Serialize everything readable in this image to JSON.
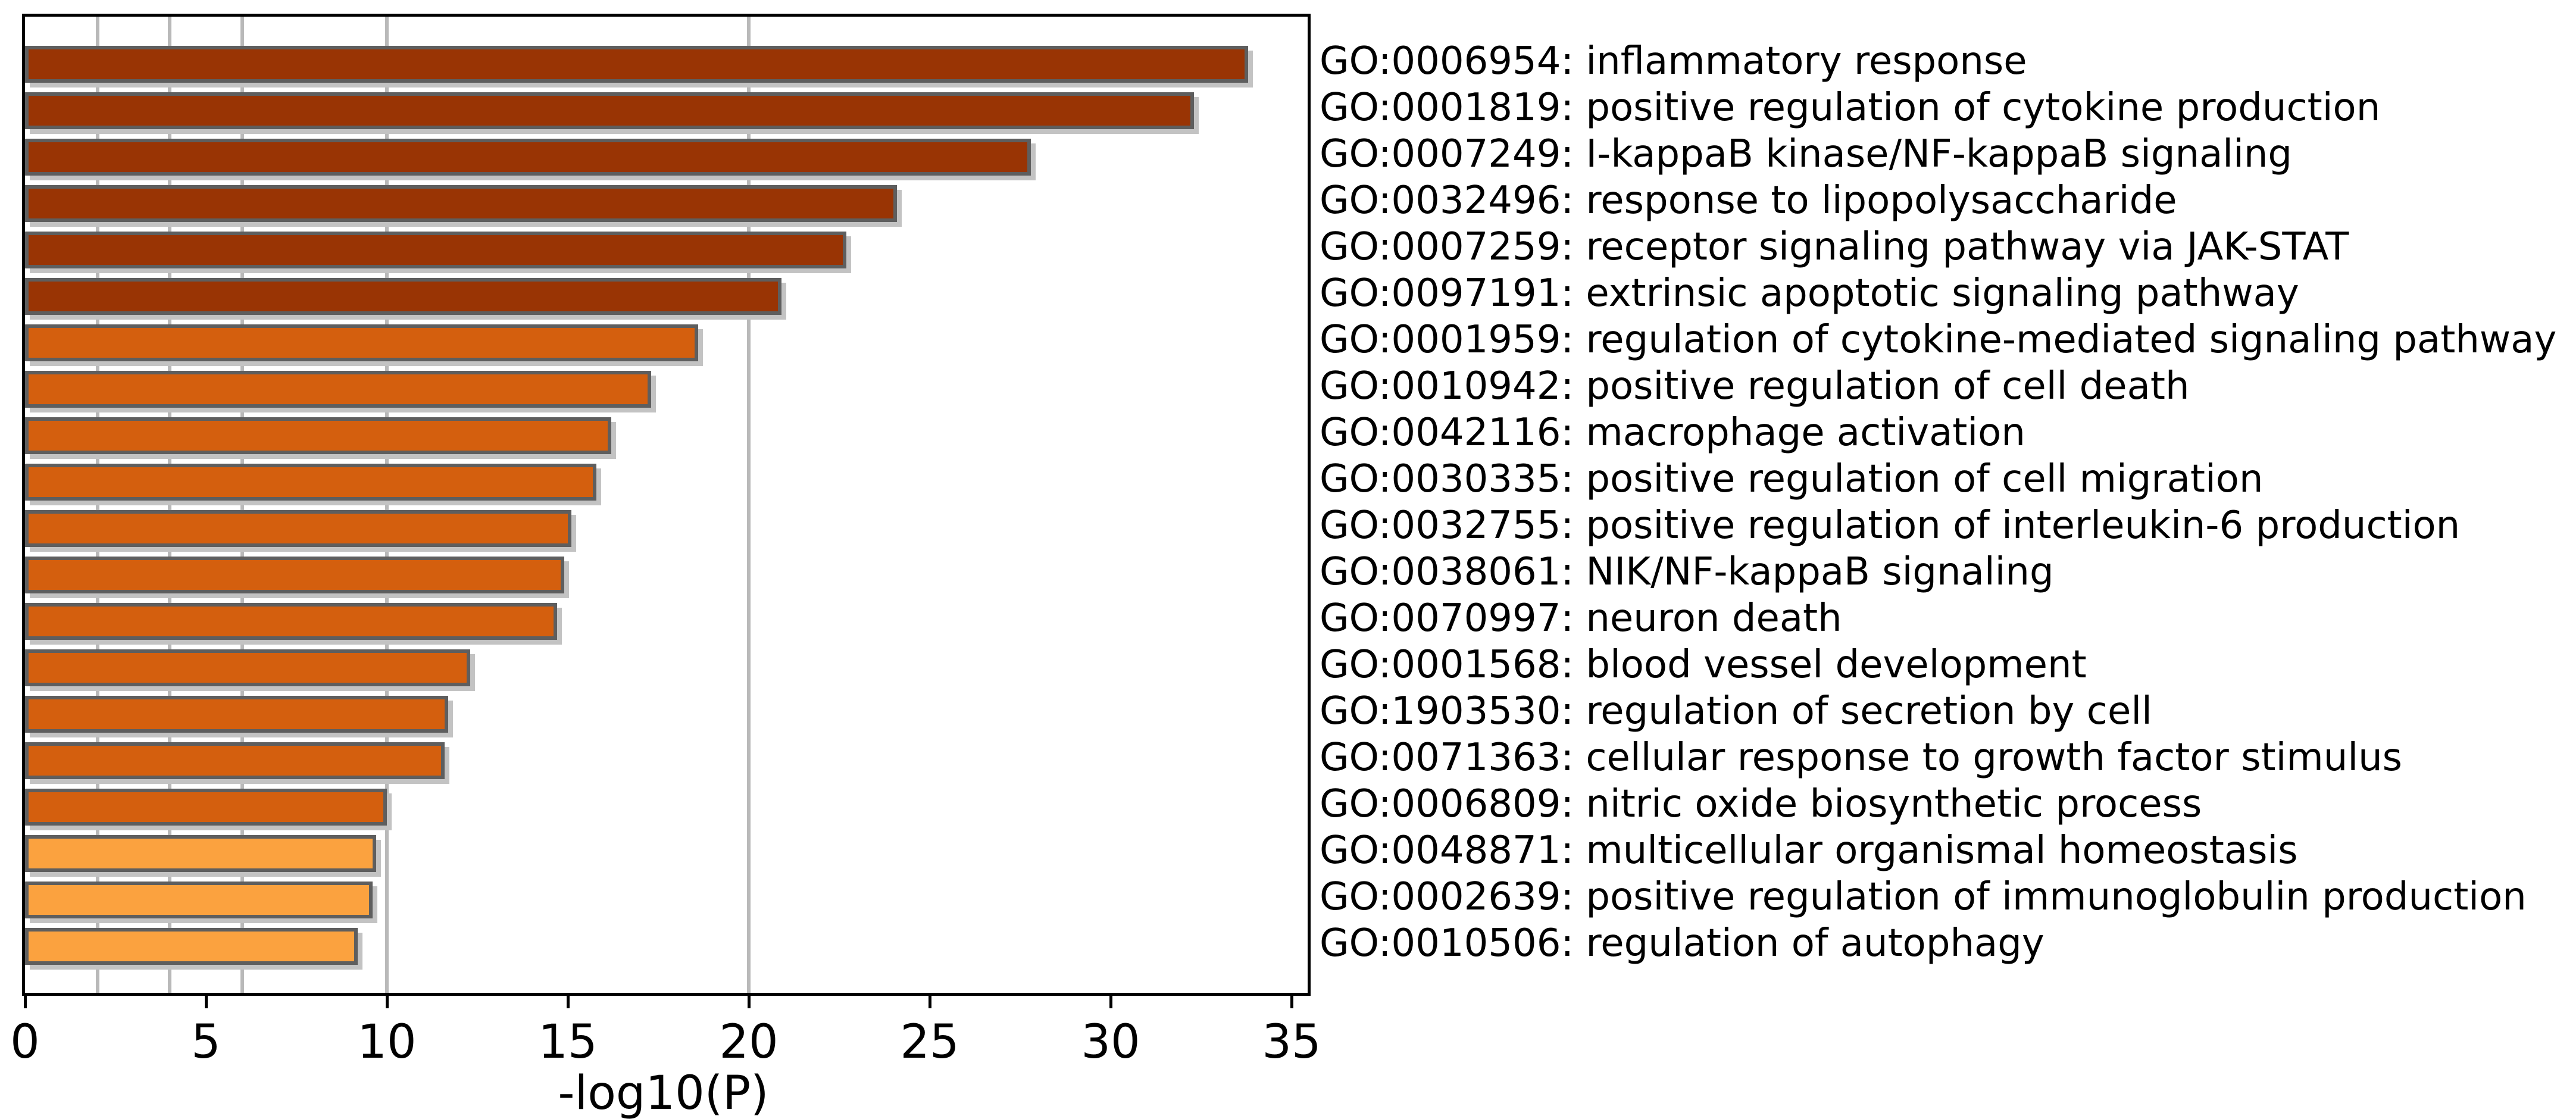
{
  "chart_data": {
    "type": "bar",
    "orientation": "horizontal",
    "title": "",
    "xlabel": "-log10(P)",
    "xlim": [
      0,
      35.45
    ],
    "x_ticks": [
      0,
      5,
      10,
      15,
      20,
      25,
      30,
      35
    ],
    "gridlines_at": [
      2,
      4,
      6,
      10,
      20
    ],
    "grid_on": true,
    "legend_position": "none",
    "categories": [
      "GO:0006954: inflammatory response",
      "GO:0001819: positive regulation of cytokine production",
      "GO:0007249: I-kappaB kinase/NF-kappaB signaling",
      "GO:0032496: response to lipopolysaccharide",
      "GO:0007259: receptor signaling pathway via JAK-STAT",
      "GO:0097191: extrinsic apoptotic signaling pathway",
      "GO:0001959: regulation of cytokine-mediated signaling pathway",
      "GO:0010942: positive regulation of cell death",
      "GO:0042116: macrophage activation",
      "GO:0030335: positive regulation of cell migration",
      "GO:0032755: positive regulation of interleukin-6 production",
      "GO:0038061: NIK/NF-kappaB signaling",
      "GO:0070997: neuron death",
      "GO:0001568: blood vessel development",
      "GO:1903530: regulation of secretion by cell",
      "GO:0071363: cellular response to growth factor stimulus",
      "GO:0006809: nitric oxide biosynthetic process",
      "GO:0048871: multicellular organismal homeostasis",
      "GO:0002639: positive regulation of immunoglobulin production",
      "GO:0010506: regulation of autophagy"
    ],
    "values": [
      33.8,
      32.3,
      27.8,
      24.1,
      22.7,
      20.9,
      18.6,
      17.3,
      16.2,
      15.8,
      15.1,
      14.9,
      14.7,
      12.3,
      11.7,
      11.6,
      10.0,
      9.7,
      9.6,
      9.2
    ],
    "color_bins": [
      {
        "min": 20,
        "color": "#993404"
      },
      {
        "min": 10,
        "color": "#d45f0e"
      },
      {
        "min": 0,
        "color": "#fba23f"
      }
    ],
    "colors_meaning": "bar color encodes -log10(P) bin: >=20 dark brown, 10-20 orange, 6-10 light orange",
    "bar_edge_color": "#5e5e5e",
    "shadow_color": "#c3c3c3",
    "grid_color": "#b9b9b9"
  }
}
